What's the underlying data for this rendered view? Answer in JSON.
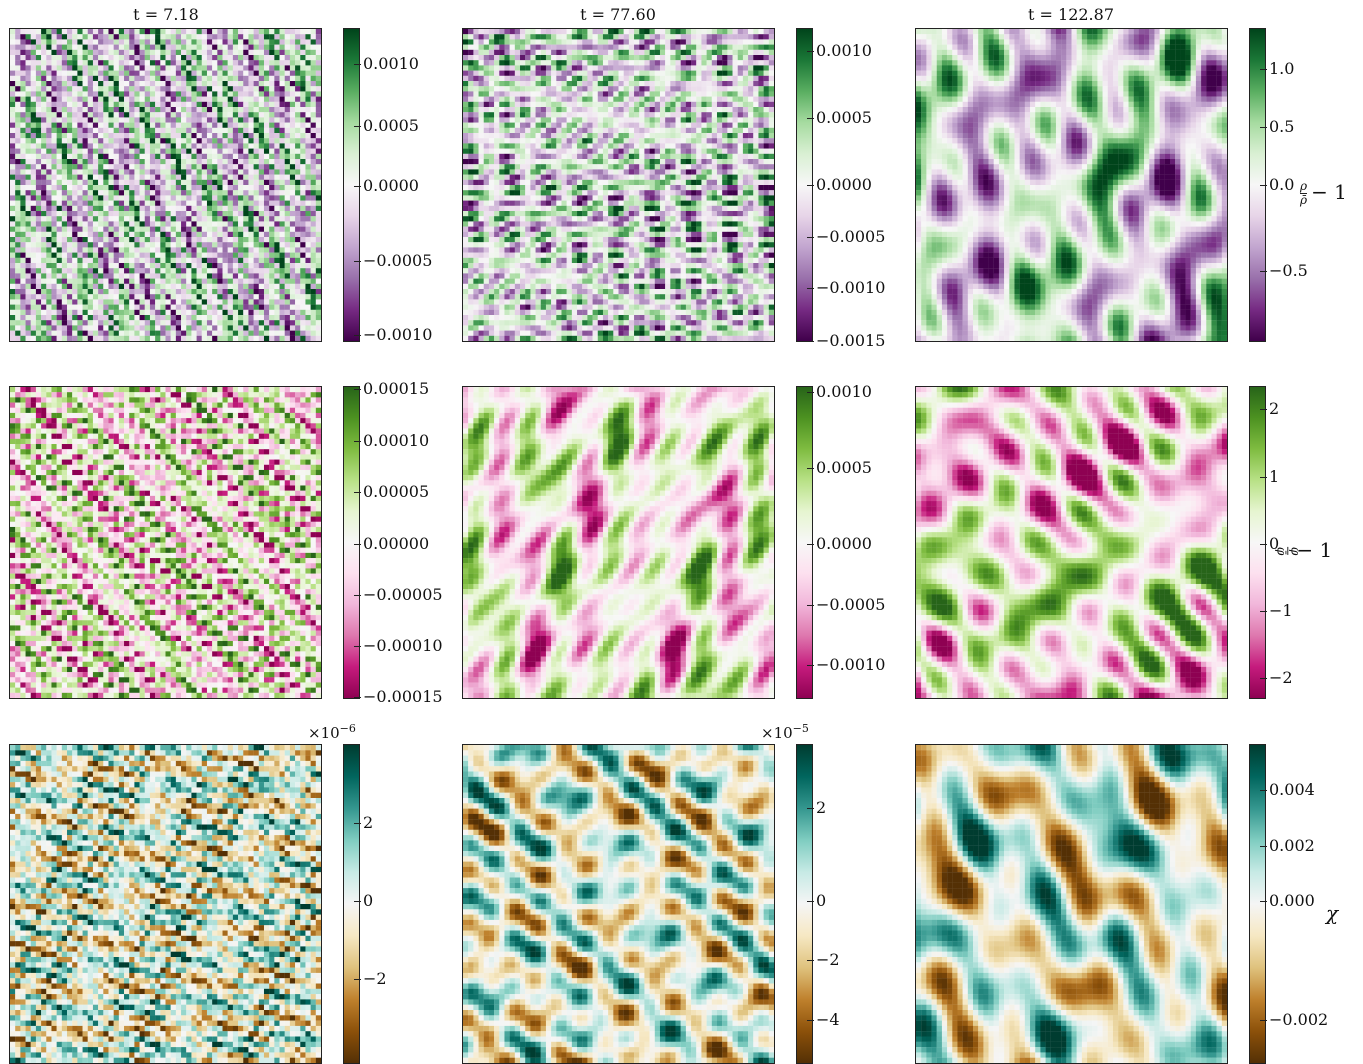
{
  "columns": [
    {
      "title": "t = 7.18"
    },
    {
      "title": "t = 77.60"
    },
    {
      "title": "t = 122.87"
    }
  ],
  "rows": [
    {
      "quantity_label": {
        "numerator": "ρ",
        "denominator": "ρ̄",
        "suffix": "− 1"
      },
      "colormap": [
        "#40004b",
        "#762a83",
        "#9970ab",
        "#c2a5cf",
        "#e7d4e8",
        "#f7f7f7",
        "#d9f0d3",
        "#a6dba0",
        "#5aae61",
        "#1b7837",
        "#00441b"
      ],
      "colorbars": [
        {
          "ticks": [
            "0.0010",
            "0.0005",
            "0.0000",
            "−0.0005",
            "−0.0010"
          ],
          "multiplier": ""
        },
        {
          "ticks": [
            "0.0010",
            "0.0005",
            "0.0000",
            "−0.0005",
            "−0.0010",
            "−0.0015"
          ],
          "multiplier": ""
        },
        {
          "ticks": [
            "1.0",
            "0.5",
            "0.0",
            "−0.5"
          ],
          "multiplier": ""
        }
      ]
    },
    {
      "quantity_label": {
        "numerator": "φ",
        "denominator": "φ̄",
        "suffix": "− 1"
      },
      "colormap": [
        "#8e0152",
        "#c51b7d",
        "#de77ae",
        "#f1b6da",
        "#fde0ef",
        "#f7f7f7",
        "#e6f5d0",
        "#b8e186",
        "#7fbc41",
        "#4d9221",
        "#276419"
      ],
      "colorbars": [
        {
          "ticks": [
            "0.00015",
            "0.00010",
            "0.00005",
            "0.00000",
            "−0.00005",
            "−0.00010",
            "−0.00015"
          ],
          "multiplier": ""
        },
        {
          "ticks": [
            "0.0010",
            "0.0005",
            "0.0000",
            "−0.0005",
            "−0.0010"
          ],
          "multiplier": ""
        },
        {
          "ticks": [
            "2",
            "1",
            "0",
            "−1",
            "−2"
          ],
          "multiplier": ""
        }
      ]
    },
    {
      "quantity_label": {
        "numerator": "",
        "denominator": "",
        "suffix": "χ"
      },
      "colormap": [
        "#543005",
        "#8c510a",
        "#bf812d",
        "#dfc27d",
        "#f6e8c3",
        "#f5f5f5",
        "#c7eae5",
        "#80cdc1",
        "#35978f",
        "#01665e",
        "#003c30"
      ],
      "colorbars": [
        {
          "ticks": [
            "2",
            "0",
            "−2"
          ],
          "multiplier": {
            "base": "×10",
            "exp": "−6"
          }
        },
        {
          "ticks": [
            "2",
            "0",
            "−2",
            "−4"
          ],
          "multiplier": {
            "base": "×10",
            "exp": "−5"
          }
        },
        {
          "ticks": [
            "0.004",
            "0.002",
            "0.000",
            "−0.002"
          ],
          "multiplier": ""
        }
      ]
    }
  ]
}
